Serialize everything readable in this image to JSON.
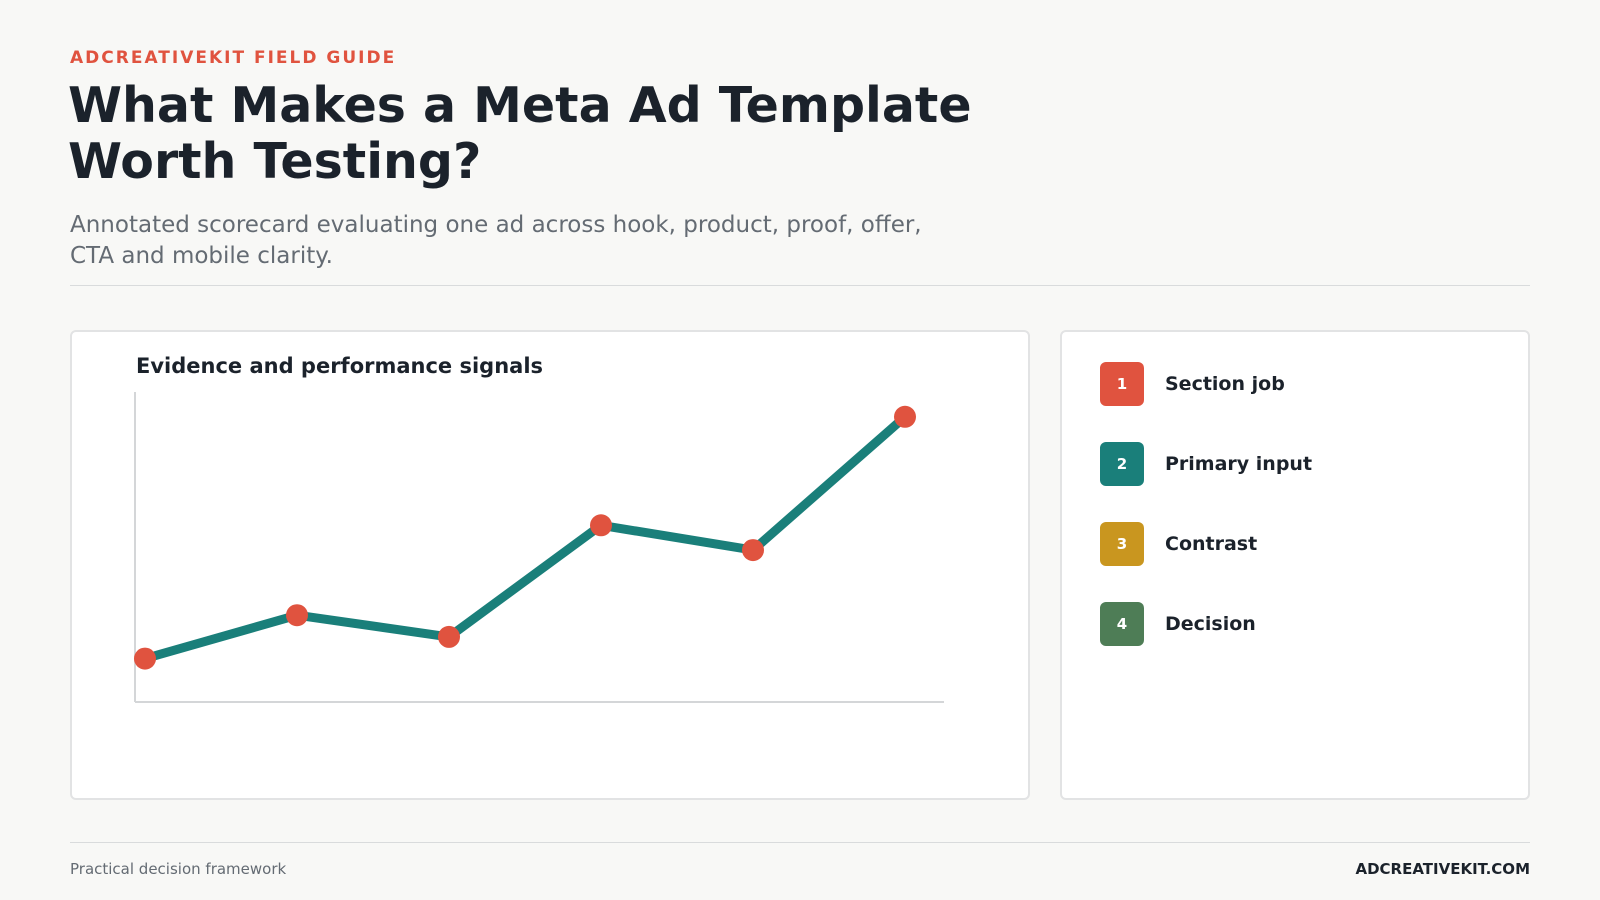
{
  "header": {
    "eyebrow": "ADCREATIVEKIT FIELD GUIDE",
    "title": "What Makes a Meta Ad Template Worth Testing?",
    "subtitle": "Annotated scorecard evaluating one ad across hook, product, proof, offer, CTA and mobile clarity."
  },
  "chart_data": {
    "type": "line",
    "title": "Evidence and performance signals",
    "x": [
      1,
      2,
      3,
      4,
      5,
      6
    ],
    "ylim": [
      0,
      100
    ],
    "series": [
      {
        "values": [
          14,
          28,
          21,
          57,
          49,
          92
        ]
      }
    ],
    "grid": false,
    "colors": {
      "line": "#1a7f7a",
      "points": "#e0533f",
      "axis": "#d4d6d8"
    }
  },
  "legend": {
    "items": [
      {
        "number": "1",
        "label": "Section job",
        "color": "#e0533f"
      },
      {
        "number": "2",
        "label": "Primary input",
        "color": "#1a7f7a"
      },
      {
        "number": "3",
        "label": "Contrast",
        "color": "#c9961f"
      },
      {
        "number": "4",
        "label": "Decision",
        "color": "#4e7d56"
      }
    ]
  },
  "footer": {
    "left": "Practical decision framework",
    "right": "ADCREATIVEKIT.COM"
  }
}
